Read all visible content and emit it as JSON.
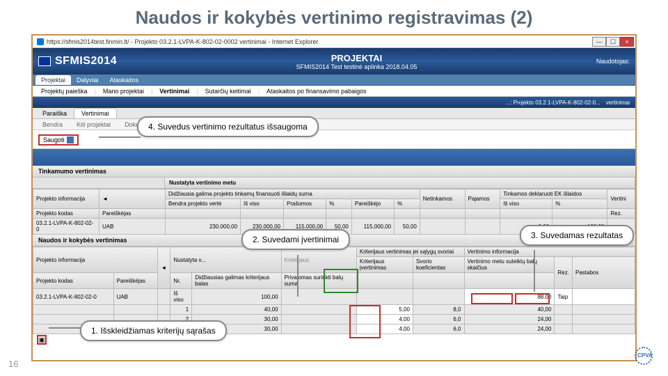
{
  "slide_title": "Naudos ir kokybės vertinimo registravimas (2)",
  "page_number": "16",
  "browser_title": "https://sfmis2014test.finmin.lt/ - Projekto 03.2.1-LVPA-K-802-02-0002 vertinimai - Internet Explorer",
  "logo_text": "SFMIS2014",
  "header_projektai": "PROJEKTAI",
  "header_env": "SFMIS2014 Test testinė aplinka 2018.04.05",
  "header_user": "Naudotojas:",
  "nav": {
    "projektai": "Projektai",
    "dalyviai": "Dalyviai",
    "ataskaitos": "Ataskaitos"
  },
  "subnav": {
    "paieska": "Projektų paieška",
    "mano": "Mano projektai",
    "vertinimai": "Vertinimai",
    "sutarciu": "Sutarčių keitimai",
    "ataskaitos": "Ataskaitos po finansavimo pabaigos"
  },
  "breadcrumb": {
    "path": "...: Projekto 03.2.1-LVPA-K-802-02-0...",
    "last": "vertinimai"
  },
  "tabs2": {
    "paraiska": "Paraiška",
    "vertinimai": "Vertinimai"
  },
  "tabs3": {
    "bendra": "Bendra",
    "kiti": "Kiti projektai",
    "dokumentai": "Dokumentai"
  },
  "save_label": "Saugoti",
  "section1": "Tinkamumo vertinimas",
  "nustat": "Nustatyta vertinimo metu",
  "top_table": {
    "h_proj_info": "Projekto informacija",
    "h_didz": "Didžiausia galima projekto tinkamų finansuoti išlaidų suma",
    "h_bendra": "Bendra projekto vertė",
    "h_tinkamos": "Tinkamos deklaruoti EK išlaidos",
    "h_vertin": "Vertini",
    "h_kodas": "Projekto kodas",
    "h_pareiskejas": "Pareiškėjas",
    "h_isviso": "Iš viso",
    "h_prasomos": "Prašomos",
    "h_pct": "%",
    "h_pareiskejo": "Pareiškėjo",
    "h_netinkamos": "Netinkamos",
    "h_pajamos": "Pajamos",
    "h_rez": "Rez.",
    "r_kodas": "03.2.1-LVPA-K-802-02-0",
    "r_pareiskejas": "UAB",
    "r_v1": "230.000,00",
    "r_v2": "230.000,00",
    "r_v3": "115.000,00",
    "r_v4": "50,00",
    "r_v5": "115.000,00",
    "r_v6": "50,00",
    "r_v7": "0,00",
    "r_v8": "0,00",
    "r_v9": "100,00"
  },
  "section2": "Naudos ir kokybės vertinimas",
  "bot_table": {
    "h_proj_info": "Projekto informacija",
    "h_nustat": "Nustatyta v...",
    "h_krit_vert": "Kriterijaus vertinimas jei sąlygų svoriai",
    "h_vert_info": "Vertinimo informacija",
    "h_green": "Kriterijaus",
    "h_kodas": "Projekto kodas",
    "h_pareiskejas": "Pareiškėjas",
    "h_nr": "Nr.",
    "h_didz": "Didžiausias galimas kriterijaus balas",
    "h_priv": "Privalomas surinkti balų suma",
    "h_krit_ivert": "Kriterijaus įvertinimas",
    "h_svorio": "Svorio koeficientas",
    "h_metu": "Vertinimo metu suteiktų balų skaičius",
    "h_rez": "Rez.",
    "h_pastabos": "Pastabos",
    "r_kodas": "03.2.1-LVPA-K-802-02-0",
    "r_pareiskejas": "UAB",
    "r_isviso_lbl": "Iš viso",
    "r_isviso": "100,00",
    "r_metu": "88.00",
    "r_rez": "Taip",
    "rows": [
      {
        "nr": "1",
        "didz": "40,00",
        "krit": "5,00",
        "svorio": "8,0",
        "metu": "40,00"
      },
      {
        "nr": "2",
        "didz": "30,00",
        "krit": "4,00",
        "svorio": "6,0",
        "metu": "24,00"
      },
      {
        "nr": "3",
        "didz": "30,00",
        "krit": "4,00",
        "svorio": "6,0",
        "metu": "24,00"
      }
    ]
  },
  "callouts": {
    "c1": "1. Išskleidžiamas kriterijų sąrašas",
    "c2": "2. Suvedami įvertinimai",
    "c3": "3. Suvedamas rezultatas",
    "c4": "4. Suvedus vertinimo rezultatus išsaugoma"
  }
}
